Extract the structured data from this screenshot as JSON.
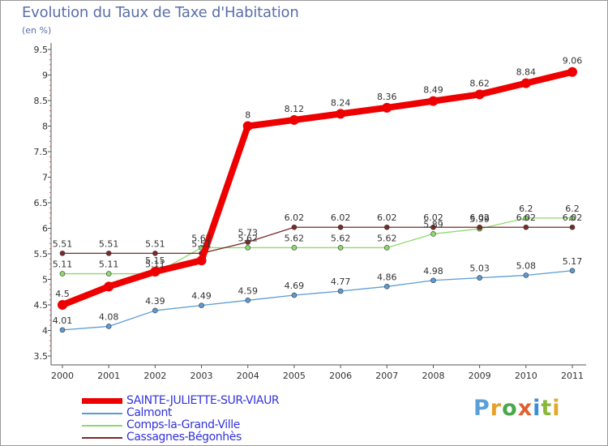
{
  "header": {
    "title": "Evolution du Taux de Taxe d'Habitation",
    "subtitle": "(en %)"
  },
  "logo": {
    "text": "Proxiti",
    "letters": [
      "P",
      "r",
      "o",
      "x",
      "i",
      "t",
      "i"
    ]
  },
  "chart_data": {
    "type": "line",
    "title": "Evolution du Taux de Taxe d'Habitation",
    "subtitle": "(en %)",
    "xlabel": "",
    "ylabel": "",
    "x": [
      "2000",
      "2001",
      "2002",
      "2003",
      "2004",
      "2005",
      "2006",
      "2007",
      "2008",
      "2009",
      "2010",
      "2011"
    ],
    "ylim": [
      3.5,
      9.5
    ],
    "yticks": [
      "3.5",
      "4",
      "4.5",
      "5",
      "5.5",
      "6",
      "6.5",
      "7",
      "7.5",
      "8",
      "8.5",
      "9",
      "9.5"
    ],
    "grid": false,
    "legend_position": "bottom-left",
    "series": [
      {
        "name": "SAINTE-JULIETTE-SUR-VIAUR",
        "color": "#ee0000",
        "values": [
          4.5,
          4.86,
          5.15,
          5.37,
          8,
          8.12,
          8.24,
          8.36,
          8.49,
          8.62,
          8.84,
          9.06
        ],
        "labels": [
          "4.5",
          "",
          "5.15",
          "",
          "8",
          "8.12",
          "8.24",
          "8.36",
          "8.49",
          "8.62",
          "8.84",
          "9.06"
        ]
      },
      {
        "name": "Calmont",
        "color": "#5b9bd5",
        "values": [
          4.01,
          4.08,
          4.39,
          4.49,
          4.59,
          4.69,
          4.77,
          4.86,
          4.98,
          5.03,
          5.08,
          5.17
        ],
        "labels": [
          "4.01",
          "4.08",
          "4.39",
          "4.49",
          "4.59",
          "4.69",
          "4.77",
          "4.86",
          "4.98",
          "5.03",
          "5.08",
          "5.17"
        ]
      },
      {
        "name": "Comps-la-Grand-Ville",
        "color": "#8ed96e",
        "values": [
          5.11,
          5.11,
          5.11,
          5.62,
          5.62,
          5.62,
          5.62,
          5.62,
          5.89,
          5.99,
          6.2,
          6.2
        ],
        "labels": [
          "5.11",
          "5.11",
          "5.11",
          "5.62",
          "5.62",
          "5.62",
          "5.62",
          "5.62",
          "5.89",
          "5.99",
          "6.2",
          "6.2"
        ]
      },
      {
        "name": "Cassagnes-Bégonhès",
        "color": "#7a2a2a",
        "values": [
          5.51,
          5.51,
          5.51,
          5.51,
          5.73,
          6.02,
          6.02,
          6.02,
          6.02,
          6.02,
          6.02,
          6.02
        ],
        "labels": [
          "5.51",
          "5.51",
          "5.51",
          "5.51",
          "5.73",
          "6.02",
          "6.02",
          "6.02",
          "6.02",
          "6.02",
          "6.02",
          "6.02"
        ]
      }
    ]
  }
}
